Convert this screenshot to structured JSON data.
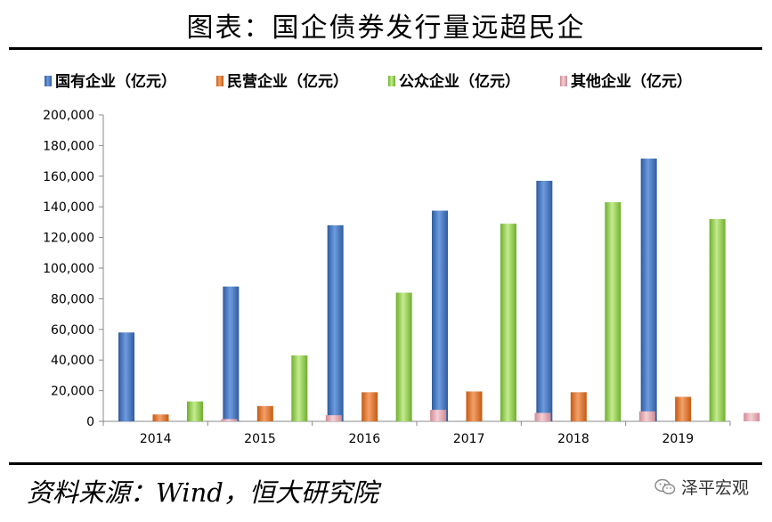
{
  "title": "图表：国企债券发行量远超民企",
  "source": "资料来源：Wind，恒大研究院",
  "watermark": "泽平宏观",
  "chart_data": {
    "type": "bar",
    "categories": [
      "2014",
      "2015",
      "2016",
      "2017",
      "2018",
      "2019"
    ],
    "ylim": [
      0,
      200000
    ],
    "yticks": [
      "0",
      "20,000",
      "40,000",
      "60,000",
      "80,000",
      "100,000",
      "120,000",
      "140,000",
      "160,000",
      "180,000",
      "200,000"
    ],
    "ytick_values": [
      0,
      20000,
      40000,
      60000,
      80000,
      100000,
      120000,
      140000,
      160000,
      180000,
      200000
    ],
    "legend_position": "top",
    "grid": false,
    "series": [
      {
        "name": "国有企业（亿元）",
        "color": "#4472C4",
        "values": [
          58000,
          88000,
          128000,
          137500,
          157000,
          171500
        ]
      },
      {
        "name": "民营企业（亿元）",
        "color": "#ED7D31",
        "values": [
          4500,
          10000,
          19000,
          19500,
          19000,
          16000
        ]
      },
      {
        "name": "公众企业（亿元）",
        "color": "#92D050",
        "values": [
          13000,
          43000,
          84000,
          129000,
          143000,
          132000
        ]
      },
      {
        "name": "其他企业（亿元）",
        "color": "#E6B0B8",
        "values": [
          1500,
          4000,
          7500,
          5500,
          6500,
          5500
        ]
      }
    ]
  }
}
